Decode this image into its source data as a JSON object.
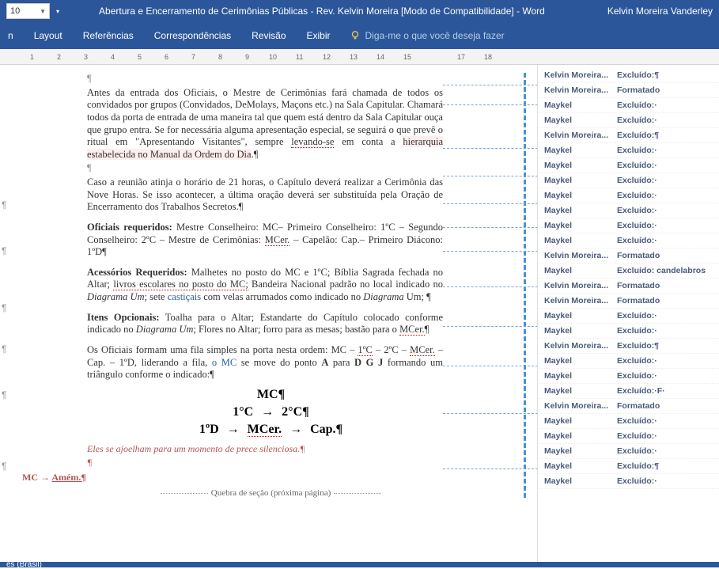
{
  "titleBar": {
    "fontSize": "10",
    "docTitle": "Abertura e Encerramento de Cerimônias Públicas - Rev. Kelvin Moreira [Modo de Compatibilidade]  -  Word",
    "userName": "Kelvin Moreira Vanderley"
  },
  "ribbon": {
    "tabs": [
      "n",
      "Layout",
      "Referências",
      "Correspondências",
      "Revisão",
      "Exibir"
    ],
    "tellMe": "Diga-me o que você deseja fazer"
  },
  "ruler": {
    "marks": [
      "1",
      "2",
      "3",
      "4",
      "5",
      "6",
      "7",
      "8",
      "9",
      "10",
      "11",
      "12",
      "13",
      "14",
      "15",
      "17",
      "18"
    ]
  },
  "document": {
    "para1": "Antes da entrada dos Oficiais, o Mestre de Cerimônias fará chamada de todos os convidados por grupos (Convidados, DeMolays, Maçons etc.) na Sala Capitular. Chamará todos da porta de entrada de uma maneira tal que quem está dentro da Sala Capitular ouça que grupo entra. Se for necessária alguma apresentação especial, se seguirá o que prevê o ritual em \"Apresentando Visitantes\", sempre ",
    "para1b": "levando-se",
    "para1c": " em conta a ",
    "para1d": "hierarquia estabelecida no Manual da Ordem do Dia",
    "para1e": ".¶",
    "para2": "Caso a reunião atinja o horário de 21 horas, o Capítulo deverá realizar a Cerimônia das Nove Horas. Se isso acontecer, a última oração deverá ser substituída pela Oração de Encerramento dos Trabalhos Secretos.¶",
    "oficiais_label": "Oficiais requeridos:",
    "oficiais_text": " Mestre Conselheiro: MC– Primeiro Conselheiro: 1ºC – Segundo Conselheiro: 2ºC – Mestre de Cerimônias: ",
    "oficiais_mcer": "MCer.",
    "oficiais_text2": " – Capelão: Cap.– Primeiro Diácono: 1ºD¶",
    "acess_label": "Acessórios Requeridos:",
    "acess_text": " Malhetes no posto do MC e 1ºC; Bíblia Sagrada fechada no Altar; ",
    "acess_livros": "livros escolares no posto do MC;",
    "acess_text2": " Bandeira Nacional padrão no local indicado no ",
    "acess_diagrama": "Diagrama Um",
    "acess_text3": "; sete ",
    "acess_cast": " castiçais ",
    "acess_text4": " com velas arrumados como indicado no ",
    "acess_diagrama2": "Diagrama",
    "acess_text5": " Um; ¶",
    "itens_label": "Itens Opcionais:",
    "itens_text": " Toalha para o Altar; Estandarte do Capítulo colocado conforme indicado no ",
    "itens_diagrama": "Diagrama Um",
    "itens_text2": "; Flores no Altar; forro para as mesas; bastão para o ",
    "itens_mcer": "MCer.",
    "itens_text3": "¶",
    "fila_text": "Os Oficiais formam uma fila simples na porta nesta ordem: MC – ",
    "fila_1c": "1ºC",
    "fila_text2": " – 2ºC – ",
    "fila_mcer": "MCer.",
    "fila_text3": " – Cap. – 1ºD, liderando a fila,",
    "fila_omc": " o MC",
    "fila_text4": " se move do ponto ",
    "fila_A": "A",
    "fila_text5": " para ",
    "fila_DGJ": "D G J",
    "fila_text6": " formando um triângulo conforme o indicado:¶",
    "center_mc": "MC¶",
    "center_1c": "1°C",
    "center_2c": "2°C¶",
    "center_1d": "1ºD",
    "center_mcer": "MCer.",
    "center_cap": "Cap.¶",
    "italic_line": "Eles se ajoelham para um momento de prece silenciosa.¶",
    "amem_mc": "MC",
    "amem_text": "Amém.¶",
    "section_break": "Quebra de seção (próxima página)"
  },
  "revisions": [
    {
      "author": "Kelvin Moreira...",
      "action": "Excluído:¶"
    },
    {
      "author": "Kelvin Moreira...",
      "action": "Formatado"
    },
    {
      "author": "Maykel",
      "action": "Excluído:·"
    },
    {
      "author": "Maykel",
      "action": "Excluído:·"
    },
    {
      "author": "Kelvin Moreira...",
      "action": "Excluído:¶"
    },
    {
      "author": "Maykel",
      "action": "Excluído:·"
    },
    {
      "author": "Maykel",
      "action": "Excluído:·"
    },
    {
      "author": "Maykel",
      "action": "Excluído:·"
    },
    {
      "author": "Maykel",
      "action": "Excluído:·"
    },
    {
      "author": "Maykel",
      "action": "Excluído:·"
    },
    {
      "author": "Maykel",
      "action": "Excluído:·"
    },
    {
      "author": "Maykel",
      "action": "Excluído:·"
    },
    {
      "author": "Kelvin Moreira...",
      "action": "Formatado"
    },
    {
      "author": "Maykel",
      "action": "Excluído: candelabros"
    },
    {
      "author": "Kelvin Moreira...",
      "action": "Formatado"
    },
    {
      "author": "Kelvin Moreira...",
      "action": "Formatado"
    },
    {
      "author": "Maykel",
      "action": "Excluído:·"
    },
    {
      "author": "Maykel",
      "action": "Excluído:·"
    },
    {
      "author": "Kelvin Moreira...",
      "action": "Excluído:¶"
    },
    {
      "author": "Maykel",
      "action": "Excluído:·"
    },
    {
      "author": "Maykel",
      "action": "Excluído:·"
    },
    {
      "author": "Maykel",
      "action": "Excluído:·F·"
    },
    {
      "author": "Kelvin Moreira...",
      "action": "Formatado"
    },
    {
      "author": "Maykel",
      "action": "Excluído:·"
    },
    {
      "author": "Maykel",
      "action": "Excluído:·"
    },
    {
      "author": "Maykel",
      "action": "Excluído:·"
    },
    {
      "author": "Maykel",
      "action": "Excluído:¶"
    },
    {
      "author": "Maykel",
      "action": "Excluído:·"
    }
  ],
  "statusBar": {
    "lang": "ês (Brasil)"
  },
  "colors": {
    "titleBg": "#2b579a",
    "ribbonBg": "#2b579a",
    "textColor": "#333333",
    "revAuthorColor": "#4a5a7a",
    "dashLineColor": "#7aa5d2",
    "redText": "#b85450"
  }
}
